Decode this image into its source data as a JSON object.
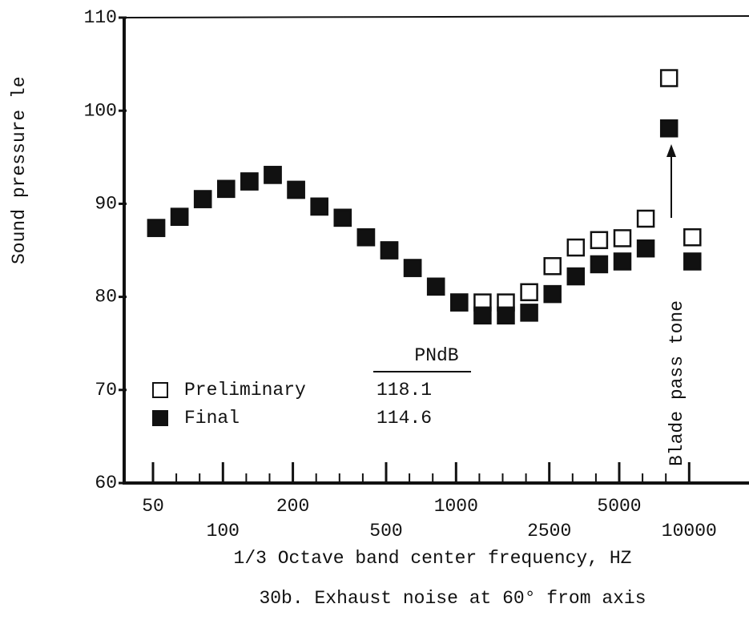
{
  "chart_data": {
    "type": "scatter",
    "caption": "30b.  Exhaust noise at 60° from axis",
    "x_label": "1/3 Octave band center frequency, HZ",
    "y_label": "Sound pressure le",
    "categories": [
      "50",
      null,
      null,
      "100",
      null,
      null,
      "200",
      null,
      null,
      null,
      "500",
      null,
      null,
      "1000",
      null,
      null,
      null,
      "2500",
      null,
      null,
      "5000",
      null,
      null,
      "10000"
    ],
    "series": [
      {
        "name": "Preliminary",
        "color": "#111111",
        "marker": "open",
        "values": [
          87.4,
          88.6,
          90.5,
          91.6,
          92.4,
          93.1,
          91.5,
          89.7,
          88.5,
          86.4,
          85.0,
          83.1,
          81.1,
          79.4,
          79.4,
          79.4,
          80.5,
          83.3,
          85.3,
          86.1,
          86.3,
          88.4,
          103.5,
          86.4
        ]
      },
      {
        "name": "Final",
        "color": "#111111",
        "marker": "filled",
        "values": [
          87.4,
          88.6,
          90.5,
          91.6,
          92.4,
          93.1,
          91.5,
          89.7,
          88.5,
          86.4,
          85.0,
          83.1,
          81.1,
          79.4,
          78.0,
          78.0,
          78.3,
          80.3,
          82.2,
          83.5,
          83.8,
          85.2,
          98.1,
          83.8
        ]
      }
    ],
    "legend_table": {
      "header": "PNdB",
      "values": [
        "118.1",
        "114.6"
      ]
    },
    "annotation": "Blade pass tone",
    "ylim": [
      60,
      110
    ],
    "yticks": [
      60,
      70,
      80,
      90,
      100,
      110
    ],
    "grid": false
  }
}
